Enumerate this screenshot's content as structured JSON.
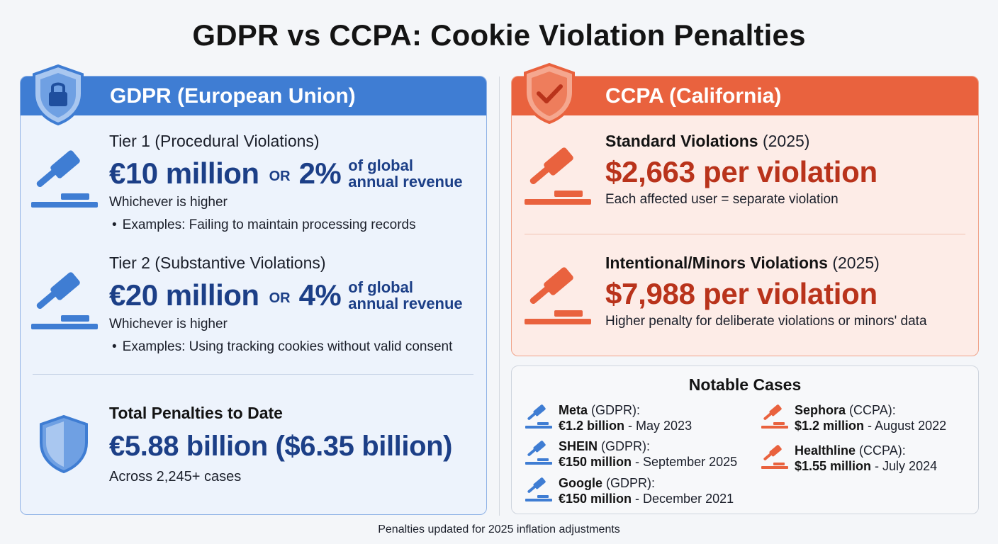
{
  "title": "GDPR vs CCPA: Cookie Violation Penalties",
  "colors": {
    "gdpr_blue": "#3f7dd3",
    "gdpr_dark": "#1c3f87",
    "ccpa_orange": "#e9623e",
    "ccpa_dark": "#b9331b"
  },
  "gdpr": {
    "header": "GDPR (European Union)",
    "header_icon": "shield-lock-icon",
    "tier1": {
      "title": "Tier 1 (Procedural Violations)",
      "amount": "€10 million",
      "or": "OR",
      "percent": "2%",
      "of_line1": "of global",
      "of_line2": "annual revenue",
      "note": "Whichever is higher",
      "example_bullet": "•",
      "example": "Examples: Failing to maintain processing records"
    },
    "tier2": {
      "title": "Tier 2 (Substantive Violations)",
      "amount": "€20 million",
      "or": "OR",
      "percent": "4%",
      "of_line1": "of global",
      "of_line2": "annual revenue",
      "note": "Whichever is higher",
      "example_bullet": "•",
      "example": "Examples: Using tracking cookies without valid consent"
    },
    "total": {
      "title": "Total Penalties to Date",
      "value": "€5.88 billion ($6.35 billion)",
      "sub": "Across 2,245+ cases"
    }
  },
  "ccpa": {
    "header": "CCPA (California)",
    "header_icon": "shield-check-icon",
    "standard": {
      "title_bold": "Standard Violations",
      "title_year": " (2025)",
      "amount": "$2,663 per violation",
      "sub": "Each affected user = separate violation"
    },
    "intentional": {
      "title_bold": "Intentional/Minors Violations",
      "title_year": " (2025)",
      "amount": "$7,988 per violation",
      "sub": "Higher penalty for deliberate violations or minors' data"
    }
  },
  "cases": {
    "title": "Notable Cases",
    "items": [
      {
        "name": "Meta",
        "law": " (GDPR):",
        "amount": "€1.2 billion",
        "date": " - May 2023"
      },
      {
        "name": "SHEIN",
        "law": " (GDPR):",
        "amount": "€150 million",
        "date": " - September 2025"
      },
      {
        "name": "Google",
        "law": " (GDPR):",
        "amount": "€150 million",
        "date": " - December 2021"
      },
      {
        "name": "Sephora",
        "law": " (CCPA):",
        "amount": "$1.2 million",
        "date": " - August 2022"
      },
      {
        "name": "Healthline",
        "law": " (CCPA):",
        "amount": "$1.55 million",
        "date": " - July 2024"
      }
    ]
  },
  "footer": "Penalties updated for 2025 inflation adjustments"
}
